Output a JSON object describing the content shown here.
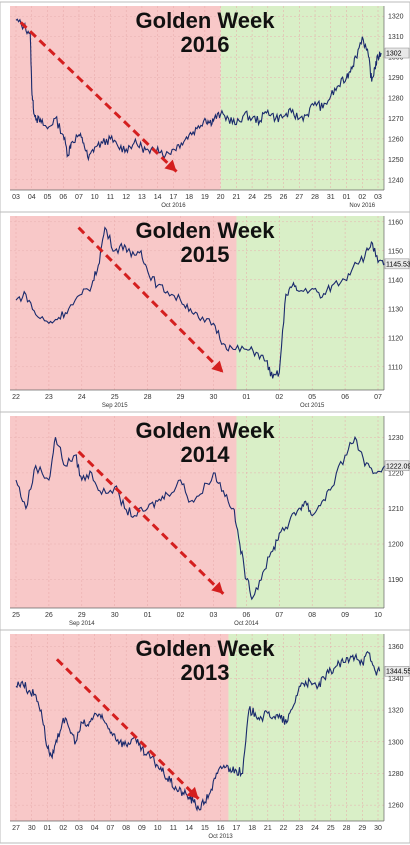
{
  "chart_data": [
    {
      "type": "line",
      "title_line1": "Golden Week",
      "title_line2": "2016",
      "yticks": [
        1240,
        1250,
        1260,
        1270,
        1280,
        1290,
        1300,
        1310,
        1320
      ],
      "ylim": [
        1235,
        1325
      ],
      "last_value": "1302",
      "x_ticks": [
        "03",
        "04",
        "05",
        "06",
        "07",
        "10",
        "11",
        "12",
        "13",
        "14",
        "17",
        "18",
        "19",
        "20",
        "21",
        "24",
        "25",
        "26",
        "27",
        "28",
        "31",
        "01",
        "02",
        "03"
      ],
      "month_labels": [
        {
          "text": "Oct 2016",
          "at": 10
        },
        {
          "text": "Nov 2016",
          "at": 22
        }
      ],
      "shade_split": 13,
      "arrow": {
        "from": [
          0.3,
          1317
        ],
        "to": [
          10.2,
          1244
        ]
      },
      "series": [
        {
          "x": [
            0,
            0.5,
            0.9,
            1.0,
            1.1,
            1.3,
            1.6,
            2,
            2.5,
            3,
            3.3,
            3.5,
            4,
            4.3,
            4.6,
            5,
            5.5,
            6,
            6.5,
            7,
            7.5,
            8,
            8.5,
            9,
            9.5,
            10,
            10.5,
            11,
            11.5,
            12,
            12.3,
            12.6,
            13,
            13.5,
            14,
            14.5,
            15,
            15.5,
            16,
            16.5,
            17,
            17.5,
            18,
            18.5,
            19,
            19.5,
            20,
            20.5,
            21,
            21.3,
            21.6,
            22,
            22.4,
            22.6,
            22.8,
            23,
            23.2
          ],
          "values": [
            1318,
            1315,
            1312,
            1285,
            1275,
            1270,
            1268,
            1265,
            1270,
            1262,
            1252,
            1258,
            1262,
            1258,
            1250,
            1256,
            1258,
            1260,
            1256,
            1255,
            1258,
            1256,
            1253,
            1256,
            1252,
            1255,
            1258,
            1262,
            1265,
            1270,
            1268,
            1270,
            1272,
            1270,
            1267,
            1272,
            1270,
            1269,
            1274,
            1270,
            1271,
            1273,
            1270,
            1272,
            1278,
            1275,
            1281,
            1286,
            1290,
            1295,
            1300,
            1310,
            1300,
            1288,
            1295,
            1300,
            1302
          ]
        }
      ]
    },
    {
      "type": "line",
      "title_line1": "Golden Week",
      "title_line2": "2015",
      "yticks": [
        1110,
        1120,
        1130,
        1140,
        1150,
        1160
      ],
      "ylim": [
        1102,
        1162
      ],
      "last_value": "1145.53",
      "x_ticks": [
        "22",
        "23",
        "24",
        "25",
        "28",
        "29",
        "30",
        "01",
        "02",
        "05",
        "06",
        "07"
      ],
      "month_labels": [
        {
          "text": "Sep 2015",
          "at": 3
        },
        {
          "text": "Oct 2015",
          "at": 9
        }
      ],
      "shade_split": 6.7,
      "arrow": {
        "from": [
          1.9,
          1158
        ],
        "to": [
          6.3,
          1108
        ]
      },
      "series": [
        {
          "x": [
            0,
            0.3,
            0.6,
            1,
            1.3,
            1.6,
            2,
            2.3,
            2.5,
            2.7,
            3,
            3.3,
            3.5,
            3.8,
            4,
            4.3,
            4.6,
            5,
            5.3,
            5.6,
            6,
            6.3,
            6.6,
            7,
            7.3,
            7.6,
            7.8,
            8,
            8.2,
            8.4,
            8.6,
            9,
            9.3,
            9.6,
            10,
            10.3,
            10.6,
            10.8,
            11,
            11.2
          ],
          "values": [
            1133,
            1135,
            1128,
            1125,
            1127,
            1130,
            1135,
            1138,
            1145,
            1158,
            1150,
            1152,
            1148,
            1150,
            1143,
            1138,
            1136,
            1133,
            1130,
            1126,
            1125,
            1118,
            1116,
            1116,
            1115,
            1112,
            1106,
            1108,
            1135,
            1138,
            1136,
            1137,
            1134,
            1138,
            1140,
            1146,
            1148,
            1153,
            1146,
            1145.5
          ]
        }
      ]
    },
    {
      "type": "line",
      "title_line1": "Golden Week",
      "title_line2": "2014",
      "yticks": [
        1190,
        1200,
        1210,
        1220,
        1230
      ],
      "ylim": [
        1182,
        1236
      ],
      "last_value": "1222.09",
      "x_ticks": [
        "25",
        "26",
        "29",
        "30",
        "01",
        "02",
        "03",
        "06",
        "07",
        "08",
        "09",
        "10"
      ],
      "month_labels": [
        {
          "text": "Sep 2014",
          "at": 2
        },
        {
          "text": "Oct 2014",
          "at": 7
        }
      ],
      "shade_split": 6.7,
      "arrow": {
        "from": [
          1.9,
          1226
        ],
        "to": [
          6.3,
          1186
        ]
      },
      "series": [
        {
          "x": [
            0,
            0.3,
            0.6,
            1,
            1.2,
            1.5,
            1.8,
            2,
            2.3,
            2.6,
            3,
            3.3,
            3.6,
            4,
            4.3,
            4.6,
            5,
            5.3,
            5.6,
            6,
            6.3,
            6.6,
            6.8,
            7,
            7.2,
            7.5,
            7.8,
            8,
            8.3,
            8.6,
            8.8,
            9,
            9.3,
            9.6,
            10,
            10.3,
            10.6,
            10.9,
            11.2
          ],
          "values": [
            1218,
            1210,
            1222,
            1218,
            1230,
            1222,
            1225,
            1218,
            1220,
            1214,
            1216,
            1210,
            1208,
            1210,
            1212,
            1214,
            1218,
            1212,
            1214,
            1220,
            1215,
            1210,
            1200,
            1190,
            1185,
            1192,
            1198,
            1203,
            1206,
            1210,
            1212,
            1208,
            1212,
            1216,
            1225,
            1230,
            1222,
            1220,
            1222
          ]
        }
      ]
    },
    {
      "type": "line",
      "title_line1": "Golden Week",
      "title_line2": "2013",
      "yticks": [
        1260,
        1280,
        1300,
        1320,
        1340,
        1360
      ],
      "ylim": [
        1250,
        1368
      ],
      "last_value": "1344.55",
      "x_ticks": [
        "27",
        "30",
        "01",
        "02",
        "03",
        "04",
        "07",
        "08",
        "09",
        "10",
        "11",
        "14",
        "15",
        "16",
        "17",
        "18",
        "21",
        "22",
        "23",
        "24",
        "25",
        "28",
        "29",
        "30"
      ],
      "month_labels": [
        {
          "text": "Oct 2013",
          "at": 13
        }
      ],
      "shade_split": 13.5,
      "arrow": {
        "from": [
          2.6,
          1352
        ],
        "to": [
          11.6,
          1264
        ]
      },
      "series": [
        {
          "x": [
            0,
            0.4,
            0.8,
            1.2,
            1.6,
            2,
            2.3,
            2.6,
            3,
            3.4,
            3.8,
            4.2,
            4.6,
            5,
            5.4,
            5.8,
            6.2,
            6.6,
            7,
            7.4,
            7.8,
            8.2,
            8.6,
            9,
            9.4,
            9.8,
            10.2,
            10.6,
            11,
            11.3,
            11.6,
            12,
            12.4,
            12.8,
            13.2,
            13.6,
            14,
            14.4,
            14.8,
            15.2,
            15.6,
            16,
            16.4,
            16.8,
            17.2,
            17.6,
            18,
            18.4,
            18.8,
            19.2,
            19.6,
            20,
            20.4,
            20.8,
            21.2,
            21.6,
            22,
            22.4,
            22.8,
            23.1
          ],
          "values": [
            1335,
            1338,
            1332,
            1330,
            1320,
            1296,
            1290,
            1300,
            1315,
            1308,
            1300,
            1312,
            1310,
            1318,
            1315,
            1310,
            1305,
            1300,
            1298,
            1302,
            1298,
            1292,
            1290,
            1285,
            1280,
            1275,
            1270,
            1268,
            1265,
            1262,
            1258,
            1262,
            1270,
            1280,
            1285,
            1283,
            1282,
            1280,
            1320,
            1318,
            1315,
            1318,
            1316,
            1315,
            1312,
            1322,
            1335,
            1338,
            1336,
            1335,
            1340,
            1345,
            1348,
            1350,
            1352,
            1355,
            1350,
            1356,
            1345,
            1344.5
          ]
        }
      ]
    }
  ]
}
